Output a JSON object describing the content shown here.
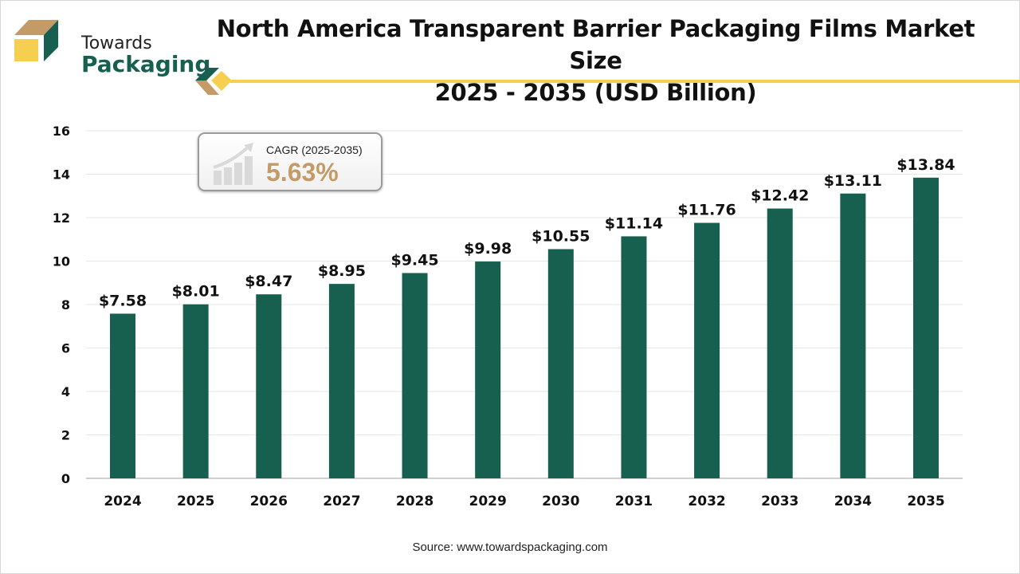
{
  "brand": {
    "line1": "Towards",
    "line2": "Packaging"
  },
  "header": {
    "title_line1": "North America Transparent Barrier Packaging Films Market Size",
    "title_line2": "2025 - 2035 (USD Billion)"
  },
  "cagr": {
    "label": "CAGR (2025-2035)",
    "value": "5.63%",
    "icon": "bar-chart-growth-arrow-icon"
  },
  "source": "Source: www.towardspackaging.com",
  "colors": {
    "bar": "#17604f",
    "accent_yellow": "#f5cf4f",
    "accent_tan": "#c49a66"
  },
  "chart_data": {
    "type": "bar",
    "title": "North America Transparent Barrier Packaging Films Market Size 2025 - 2035 (USD Billion)",
    "categories": [
      "2024",
      "2025",
      "2026",
      "2027",
      "2028",
      "2029",
      "2030",
      "2031",
      "2032",
      "2033",
      "2034",
      "2035"
    ],
    "values": [
      7.58,
      8.01,
      8.47,
      8.95,
      9.45,
      9.98,
      10.55,
      11.14,
      11.76,
      12.42,
      13.11,
      13.84
    ],
    "data_labels": [
      "$7.58",
      "$8.01",
      "$8.47",
      "$8.95",
      "$9.45",
      "$9.98",
      "$10.55",
      "$11.14",
      "$11.76",
      "$12.42",
      "$13.11",
      "$13.84"
    ],
    "xlabel": "",
    "ylabel": "",
    "ylim": [
      0,
      16
    ],
    "yticks": [
      0,
      2,
      4,
      6,
      8,
      10,
      12,
      14,
      16
    ],
    "grid": true,
    "legend": "none"
  }
}
